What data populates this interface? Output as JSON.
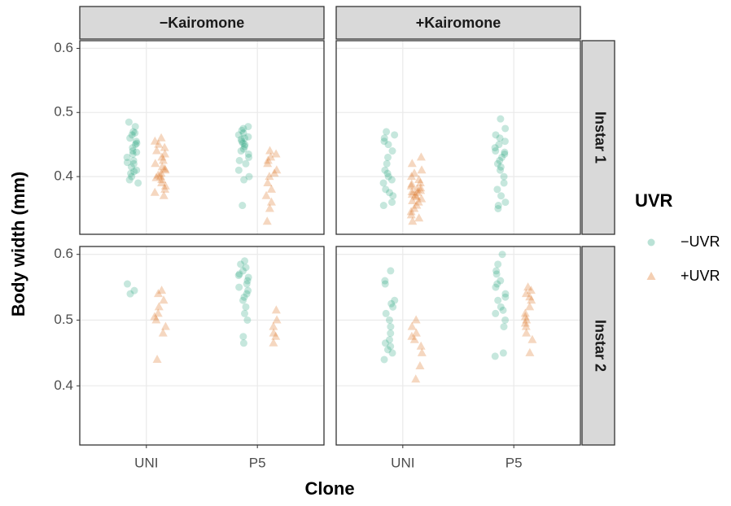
{
  "chart_data": {
    "type": "scatter",
    "x_label": "Clone",
    "y_label": "Body width (mm)",
    "legend_title": "UVR",
    "categories": [
      "UNI",
      "P5"
    ],
    "columns": [
      "−Kairomone",
      "+Kairomone"
    ],
    "rows": [
      "Instar 1",
      "Instar 2"
    ],
    "series": [
      {
        "name": "−UVR",
        "color": "#1b9e77",
        "shape": "circle"
      },
      {
        "name": "+UVR",
        "color": "#d95f02",
        "shape": "triangle"
      }
    ],
    "ylim": [
      0.31,
      0.612
    ],
    "yticks": [
      0.4,
      0.5,
      0.6
    ],
    "grid": true,
    "panels": [
      {
        "column": 0,
        "row": 0,
        "series": [
          {
            "values": [
              [
                0.485,
                0.478,
                0.47,
                0.465,
                0.46,
                0.455,
                0.45,
                0.445,
                0.44,
                0.435,
                0.43,
                0.425,
                0.42,
                0.415,
                0.41,
                0.405,
                0.4,
                0.395,
                0.39,
                0.468,
                0.452,
                0.438,
                0.422,
                0.408
              ],
              [
                0.478,
                0.475,
                0.472,
                0.468,
                0.465,
                0.462,
                0.458,
                0.455,
                0.45,
                0.447,
                0.443,
                0.44,
                0.435,
                0.43,
                0.425,
                0.42,
                0.41,
                0.4,
                0.395,
                0.355,
                0.46,
                0.452
              ]
            ]
          },
          {
            "values": [
              [
                0.46,
                0.455,
                0.45,
                0.445,
                0.44,
                0.435,
                0.43,
                0.425,
                0.42,
                0.415,
                0.41,
                0.405,
                0.4,
                0.395,
                0.39,
                0.385,
                0.38,
                0.375,
                0.37,
                0.412,
                0.402,
                0.398
              ],
              [
                0.44,
                0.435,
                0.43,
                0.425,
                0.42,
                0.41,
                0.4,
                0.39,
                0.38,
                0.37,
                0.36,
                0.35,
                0.33,
                0.405
              ]
            ]
          }
        ]
      },
      {
        "column": 1,
        "row": 0,
        "series": [
          {
            "values": [
              [
                0.47,
                0.465,
                0.46,
                0.45,
                0.44,
                0.43,
                0.42,
                0.41,
                0.405,
                0.4,
                0.39,
                0.38,
                0.375,
                0.37,
                0.36,
                0.355,
                0.455,
                0.395
              ],
              [
                0.49,
                0.475,
                0.465,
                0.46,
                0.455,
                0.45,
                0.445,
                0.44,
                0.435,
                0.43,
                0.425,
                0.42,
                0.415,
                0.41,
                0.4,
                0.39,
                0.38,
                0.37,
                0.36,
                0.355,
                0.35,
                0.438
              ]
            ]
          },
          {
            "values": [
              [
                0.43,
                0.42,
                0.41,
                0.405,
                0.4,
                0.395,
                0.39,
                0.385,
                0.38,
                0.378,
                0.375,
                0.372,
                0.37,
                0.368,
                0.365,
                0.36,
                0.355,
                0.35,
                0.345,
                0.34,
                0.335,
                0.33,
                0.388,
                0.382,
                0.376,
                0.362
              ],
              []
            ]
          }
        ]
      },
      {
        "column": 0,
        "row": 1,
        "series": [
          {
            "values": [
              [
                0.555,
                0.545,
                0.54
              ],
              [
                0.59,
                0.585,
                0.58,
                0.575,
                0.57,
                0.565,
                0.56,
                0.555,
                0.55,
                0.545,
                0.54,
                0.535,
                0.53,
                0.52,
                0.51,
                0.5,
                0.475,
                0.465,
                0.568
              ]
            ]
          },
          {
            "values": [
              [
                0.545,
                0.54,
                0.53,
                0.52,
                0.51,
                0.505,
                0.5,
                0.49,
                0.48,
                0.44
              ],
              [
                0.515,
                0.5,
                0.49,
                0.48,
                0.475,
                0.465
              ]
            ]
          }
        ]
      },
      {
        "column": 1,
        "row": 1,
        "series": [
          {
            "values": [
              [
                0.575,
                0.56,
                0.555,
                0.53,
                0.525,
                0.52,
                0.51,
                0.5,
                0.49,
                0.48,
                0.47,
                0.465,
                0.46,
                0.455,
                0.45,
                0.44
              ],
              [
                0.6,
                0.585,
                0.575,
                0.57,
                0.56,
                0.555,
                0.55,
                0.54,
                0.535,
                0.53,
                0.52,
                0.515,
                0.51,
                0.5,
                0.49,
                0.45,
                0.445
              ]
            ]
          },
          {
            "values": [
              [
                0.5,
                0.49,
                0.48,
                0.475,
                0.47,
                0.46,
                0.45,
                0.43,
                0.41
              ],
              [
                0.55,
                0.545,
                0.54,
                0.535,
                0.53,
                0.52,
                0.51,
                0.505,
                0.5,
                0.495,
                0.49,
                0.48,
                0.47,
                0.45
              ]
            ]
          }
        ]
      }
    ]
  }
}
